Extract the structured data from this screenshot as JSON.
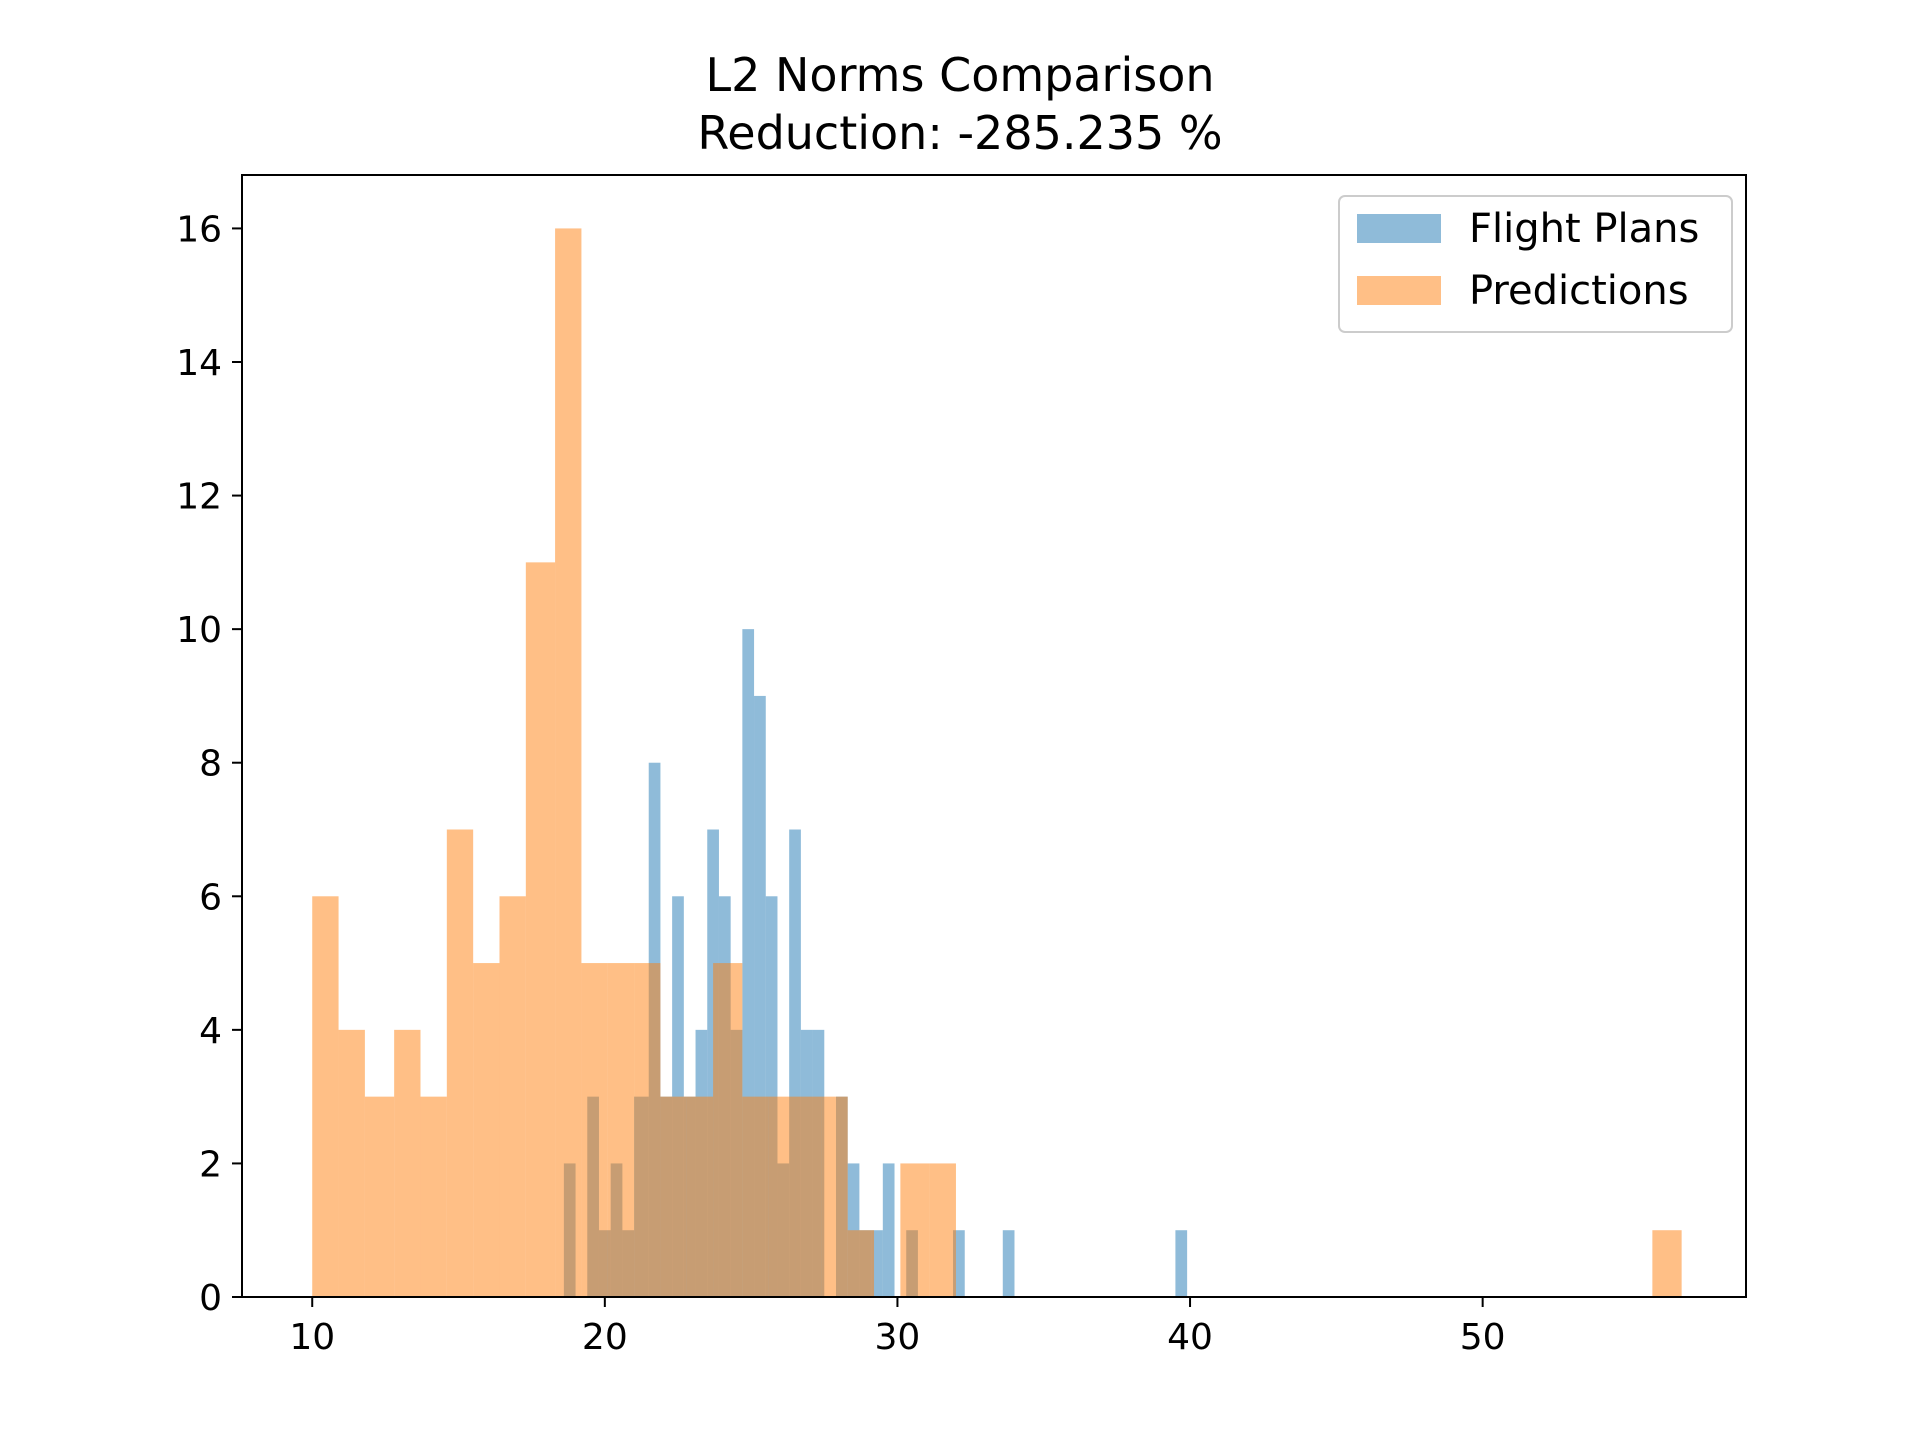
{
  "chart_data": {
    "type": "histogram",
    "title": "L2 Norms Comparison",
    "subtitle": "Reduction: -285.235 %",
    "xlabel": "",
    "ylabel": "",
    "xlim": [
      7.6,
      59.0
    ],
    "ylim": [
      0,
      16.8
    ],
    "x_ticks": [
      10,
      20,
      30,
      40,
      50
    ],
    "y_ticks": [
      0,
      2,
      4,
      6,
      8,
      10,
      12,
      14,
      16
    ],
    "grid": false,
    "legend_position": "top-right",
    "series": [
      {
        "name": "Flight Plans",
        "color": "#1f77b4",
        "alpha": 0.5,
        "bins": [
          {
            "x0": 18.6,
            "x1": 19.0,
            "count": 2
          },
          {
            "x0": 19.4,
            "x1": 19.8,
            "count": 3
          },
          {
            "x0": 19.8,
            "x1": 20.2,
            "count": 1
          },
          {
            "x0": 20.2,
            "x1": 20.6,
            "count": 2
          },
          {
            "x0": 20.6,
            "x1": 21.0,
            "count": 1
          },
          {
            "x0": 21.0,
            "x1": 21.5,
            "count": 3
          },
          {
            "x0": 21.5,
            "x1": 21.9,
            "count": 8
          },
          {
            "x0": 21.9,
            "x1": 22.3,
            "count": 3
          },
          {
            "x0": 22.3,
            "x1": 22.7,
            "count": 6
          },
          {
            "x0": 22.7,
            "x1": 23.1,
            "count": 3
          },
          {
            "x0": 23.1,
            "x1": 23.5,
            "count": 4
          },
          {
            "x0": 23.5,
            "x1": 23.9,
            "count": 7
          },
          {
            "x0": 23.9,
            "x1": 24.3,
            "count": 6
          },
          {
            "x0": 24.3,
            "x1": 24.7,
            "count": 4
          },
          {
            "x0": 24.7,
            "x1": 25.1,
            "count": 10
          },
          {
            "x0": 25.1,
            "x1": 25.5,
            "count": 9
          },
          {
            "x0": 25.5,
            "x1": 25.9,
            "count": 6
          },
          {
            "x0": 25.9,
            "x1": 26.3,
            "count": 2
          },
          {
            "x0": 26.3,
            "x1": 26.7,
            "count": 7
          },
          {
            "x0": 26.7,
            "x1": 27.1,
            "count": 4
          },
          {
            "x0": 27.1,
            "x1": 27.5,
            "count": 4
          },
          {
            "x0": 27.9,
            "x1": 28.3,
            "count": 3
          },
          {
            "x0": 28.3,
            "x1": 28.7,
            "count": 2
          },
          {
            "x0": 28.7,
            "x1": 29.1,
            "count": 1
          },
          {
            "x0": 29.1,
            "x1": 29.5,
            "count": 1
          },
          {
            "x0": 29.5,
            "x1": 29.9,
            "count": 2
          },
          {
            "x0": 30.3,
            "x1": 30.7,
            "count": 1
          },
          {
            "x0": 31.9,
            "x1": 32.3,
            "count": 1
          },
          {
            "x0": 33.6,
            "x1": 34.0,
            "count": 1
          },
          {
            "x0": 39.5,
            "x1": 39.9,
            "count": 1
          }
        ]
      },
      {
        "name": "Predictions",
        "color": "#ff7f0e",
        "alpha": 0.5,
        "bins": [
          {
            "x0": 10.0,
            "x1": 10.9,
            "count": 6
          },
          {
            "x0": 10.9,
            "x1": 11.8,
            "count": 4
          },
          {
            "x0": 11.8,
            "x1": 12.8,
            "count": 3
          },
          {
            "x0": 12.8,
            "x1": 13.7,
            "count": 4
          },
          {
            "x0": 13.7,
            "x1": 14.6,
            "count": 3
          },
          {
            "x0": 14.6,
            "x1": 15.5,
            "count": 7
          },
          {
            "x0": 15.5,
            "x1": 16.4,
            "count": 5
          },
          {
            "x0": 16.4,
            "x1": 17.3,
            "count": 6
          },
          {
            "x0": 17.3,
            "x1": 18.3,
            "count": 11
          },
          {
            "x0": 18.3,
            "x1": 19.2,
            "count": 16
          },
          {
            "x0": 19.2,
            "x1": 20.1,
            "count": 5
          },
          {
            "x0": 20.1,
            "x1": 21.0,
            "count": 5
          },
          {
            "x0": 21.0,
            "x1": 21.9,
            "count": 5
          },
          {
            "x0": 21.9,
            "x1": 22.8,
            "count": 3
          },
          {
            "x0": 22.8,
            "x1": 23.7,
            "count": 3
          },
          {
            "x0": 23.7,
            "x1": 24.7,
            "count": 5
          },
          {
            "x0": 24.7,
            "x1": 25.6,
            "count": 3
          },
          {
            "x0": 25.6,
            "x1": 26.5,
            "count": 3
          },
          {
            "x0": 26.5,
            "x1": 27.4,
            "count": 3
          },
          {
            "x0": 27.4,
            "x1": 28.3,
            "count": 3
          },
          {
            "x0": 28.3,
            "x1": 29.2,
            "count": 1
          },
          {
            "x0": 29.2,
            "x1": 30.1,
            "count": 0
          },
          {
            "x0": 30.1,
            "x1": 31.1,
            "count": 2
          },
          {
            "x0": 31.1,
            "x1": 32.0,
            "count": 2
          },
          {
            "x0": 55.8,
            "x1": 56.8,
            "count": 1
          }
        ]
      }
    ]
  }
}
